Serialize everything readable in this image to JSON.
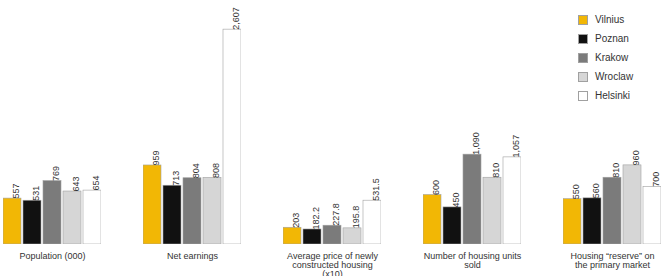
{
  "chart_data": {
    "type": "bar",
    "categories": [
      "Population (000)",
      "Net earnings",
      "Average price of newly constructed housing (x10)",
      "Number of housing units sold",
      "Housing “reserve” on the primary market"
    ],
    "series": [
      {
        "name": "Vilnius",
        "color": "#f2b705",
        "values": [
          557,
          959,
          203,
          600,
          550
        ],
        "value_labels": [
          "557",
          "959",
          "203",
          "600",
          "550"
        ]
      },
      {
        "name": "Poznan",
        "color": "#111111",
        "values": [
          531,
          713,
          182.2,
          450,
          560
        ],
        "value_labels": [
          "531",
          "713",
          "182.2",
          "450",
          "560"
        ]
      },
      {
        "name": "Krakow",
        "color": "#7b7b7b",
        "values": [
          769,
          804,
          227.8,
          1090,
          810
        ],
        "value_labels": [
          "769",
          "804",
          "227.8",
          "1,090",
          "810"
        ]
      },
      {
        "name": "Wroclaw",
        "color": "#d6d6d6",
        "values": [
          643,
          808,
          195.8,
          810,
          960
        ],
        "value_labels": [
          "643",
          "808",
          "195.8",
          "810",
          "960"
        ]
      },
      {
        "name": "Helsinki",
        "color": "#ffffff",
        "values": [
          654,
          2607,
          531.5,
          1057,
          700
        ],
        "value_labels": [
          "654",
          "2,607",
          "531.5",
          "1,057",
          "700"
        ]
      }
    ],
    "ylim": [
      0,
      2900
    ],
    "yticks": [],
    "data_labels": true,
    "tick_labels": "x",
    "legend": "top-right"
  }
}
